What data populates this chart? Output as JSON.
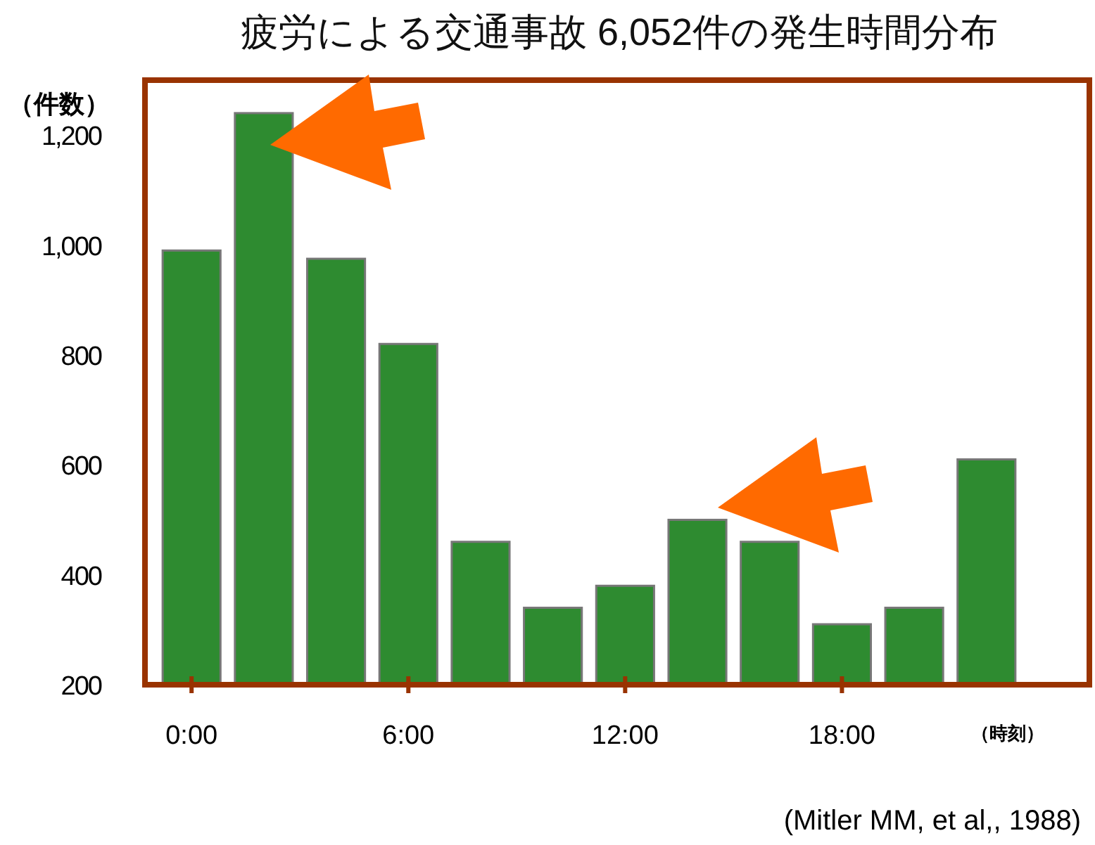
{
  "chart_data": {
    "type": "bar",
    "title": "疲労による交通事故  6,052件の発生時間分布",
    "ylabel": "（件数）",
    "xlabel": "（時刻）",
    "categories": [
      "0:00",
      null,
      null,
      "6:00",
      null,
      null,
      "12:00",
      null,
      null,
      "18:00",
      null,
      null
    ],
    "values": [
      990,
      1240,
      975,
      820,
      460,
      340,
      380,
      500,
      460,
      310,
      340,
      610
    ],
    "color": "#2e8b30",
    "ylim": [
      200,
      1300
    ],
    "yticks": [
      {
        "value": 200,
        "label": "200"
      },
      {
        "value": 400,
        "label": "400"
      },
      {
        "value": 600,
        "label": "600"
      },
      {
        "value": 800,
        "label": "800"
      },
      {
        "value": 1000,
        "label": "1,000"
      },
      {
        "value": 1200,
        "label": "1,200"
      }
    ],
    "annotations": [
      "(Mitler  MM,  et al,, 1988)"
    ]
  }
}
